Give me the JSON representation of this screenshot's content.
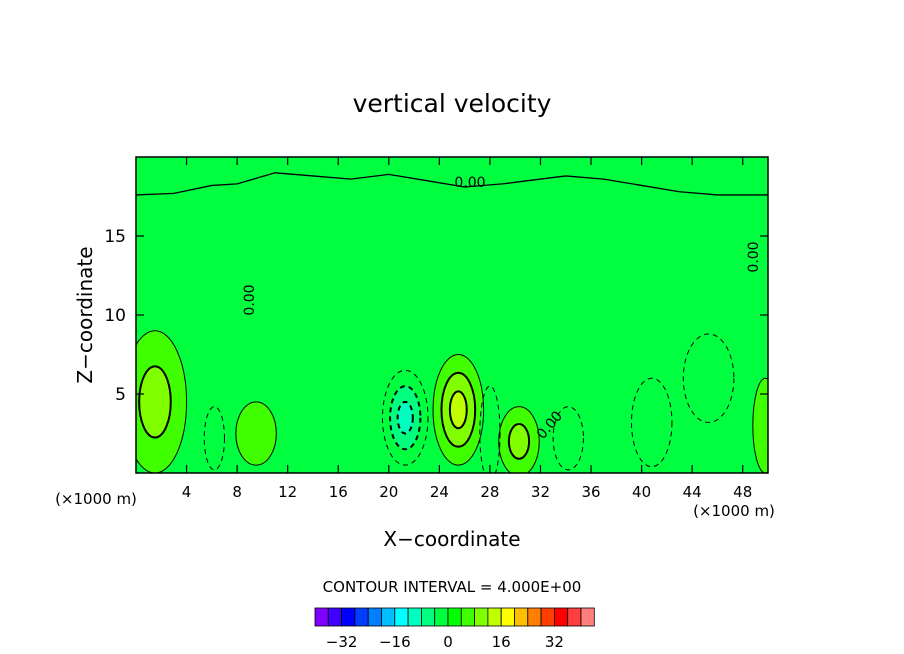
{
  "chart_data": {
    "type": "contour",
    "title": "vertical velocity",
    "xlabel": "X−coordinate",
    "ylabel": "Z−coordinate",
    "x_unit_left": "(×1000 m)",
    "x_unit_right": "(×1000 m)",
    "xlim": [
      0,
      50
    ],
    "ylim": [
      0,
      20
    ],
    "x_ticks": [
      4,
      8,
      12,
      16,
      20,
      24,
      28,
      32,
      36,
      40,
      44,
      48
    ],
    "y_ticks": [
      5,
      10,
      15
    ],
    "contour_interval_text": "CONTOUR INTERVAL = 4.000E+00",
    "contour_labels": [
      "0.00",
      "0.00",
      "0.00",
      "0.00"
    ],
    "colorbar": {
      "ticks": [
        "−32",
        "−16",
        "0",
        "16",
        "32"
      ],
      "tick_values": [
        -32,
        -16,
        0,
        16,
        32
      ],
      "colors": [
        "#7f00ff",
        "#3f00ff",
        "#0000ff",
        "#003fff",
        "#007fff",
        "#00bfff",
        "#00ffff",
        "#00ffbf",
        "#00ff7f",
        "#00ff3f",
        "#00ff00",
        "#3fff00",
        "#7fff00",
        "#bfff00",
        "#ffff00",
        "#ffbf00",
        "#ff7f00",
        "#ff3f00",
        "#ff0000",
        "#ff3f3f",
        "#ff7f7f"
      ]
    },
    "background_fill": "#00ff3f",
    "features": [
      {
        "kind": "updraft",
        "x": 25.5,
        "z": 4.0,
        "rx": 2.0,
        "rz": 3.5,
        "peak": 12
      },
      {
        "kind": "updraft",
        "x": 30.3,
        "z": 2.0,
        "rx": 1.6,
        "rz": 2.2,
        "peak": 8
      },
      {
        "kind": "updraft",
        "x": 1.5,
        "z": 4.5,
        "rx": 2.5,
        "rz": 4.5,
        "peak": 8
      },
      {
        "kind": "updraft",
        "x": 9.5,
        "z": 2.5,
        "rx": 1.6,
        "rz": 2.0,
        "peak": 4
      },
      {
        "kind": "updraft",
        "x": 49.8,
        "z": 3.0,
        "rx": 1.0,
        "rz": 3.0,
        "peak": 4
      },
      {
        "kind": "downdraft",
        "x": 21.3,
        "z": 3.5,
        "rx": 1.8,
        "rz": 3.0,
        "peak": -12
      },
      {
        "kind": "downdraft",
        "x": 28.0,
        "z": 2.5,
        "rx": 0.8,
        "rz": 3.0,
        "peak": -4
      },
      {
        "kind": "downdraft",
        "x": 6.2,
        "z": 2.2,
        "rx": 0.8,
        "rz": 2.0,
        "peak": -4
      },
      {
        "kind": "downdraft",
        "x": 34.2,
        "z": 2.2,
        "rx": 1.2,
        "rz": 2.0,
        "peak": -4
      },
      {
        "kind": "downdraft",
        "x": 40.8,
        "z": 3.2,
        "rx": 1.6,
        "rz": 2.8,
        "peak": -4
      },
      {
        "kind": "downdraft",
        "x": 45.3,
        "z": 6.0,
        "rx": 2.0,
        "rz": 2.8,
        "peak": -4
      }
    ]
  }
}
